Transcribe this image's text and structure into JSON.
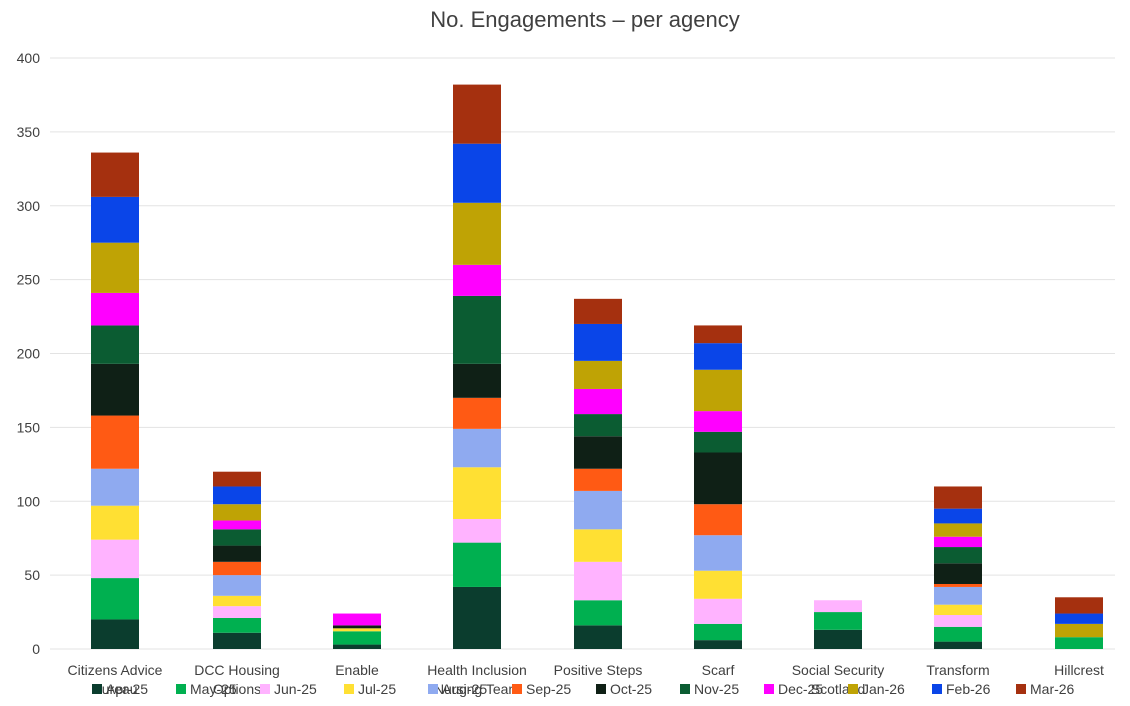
{
  "chart_data": {
    "type": "bar",
    "stacked": true,
    "title": "No. Engagements – per agency",
    "xlabel": "",
    "ylabel": "",
    "ylim": [
      0,
      400
    ],
    "yticks": [
      0,
      50,
      100,
      150,
      200,
      250,
      300,
      350,
      400
    ],
    "grid": true,
    "legend_position": "bottom",
    "categories": [
      [
        "Citizens Advice",
        "Bureau"
      ],
      [
        "DCC Housing",
        "Options"
      ],
      [
        "Enable"
      ],
      [
        "Health Inclusion",
        "Nursing Team"
      ],
      [
        "Positive Steps"
      ],
      [
        "Scarf"
      ],
      [
        "Social Security",
        "Scotland"
      ],
      [
        "Transform"
      ],
      [
        "Hillcrest"
      ]
    ],
    "series": [
      {
        "name": "Apr-25",
        "color": "#0b3d2e",
        "values": [
          20,
          11,
          3,
          42,
          16,
          6,
          13,
          5,
          0
        ]
      },
      {
        "name": "May-25",
        "color": "#00b050",
        "values": [
          28,
          10,
          9,
          30,
          17,
          11,
          12,
          10,
          8
        ]
      },
      {
        "name": "Jun-25",
        "color": "#ffb3ff",
        "values": [
          26,
          8,
          0,
          16,
          26,
          17,
          8,
          8,
          0
        ]
      },
      {
        "name": "Jul-25",
        "color": "#ffe033",
        "values": [
          23,
          7,
          2,
          35,
          22,
          19,
          0,
          7,
          0
        ]
      },
      {
        "name": "Aug-25",
        "color": "#8faaf0",
        "values": [
          25,
          14,
          0,
          26,
          26,
          24,
          0,
          12,
          0
        ]
      },
      {
        "name": "Sep-25",
        "color": "#ff5a14",
        "values": [
          36,
          9,
          0,
          21,
          15,
          21,
          0,
          2,
          0
        ]
      },
      {
        "name": "Oct-25",
        "color": "#0f2016",
        "values": [
          35,
          11,
          2,
          23,
          22,
          35,
          0,
          14,
          0
        ]
      },
      {
        "name": "Nov-25",
        "color": "#0b5c32",
        "values": [
          26,
          11,
          0,
          46,
          15,
          14,
          0,
          11,
          0
        ]
      },
      {
        "name": "Dec-25",
        "color": "#ff00ff",
        "values": [
          22,
          6,
          8,
          21,
          17,
          14,
          0,
          7,
          0
        ]
      },
      {
        "name": "Jan-26",
        "color": "#bfa305",
        "values": [
          34,
          11,
          0,
          42,
          19,
          28,
          0,
          9,
          9
        ]
      },
      {
        "name": "Feb-26",
        "color": "#0a45e8",
        "values": [
          31,
          12,
          0,
          40,
          25,
          18,
          0,
          10,
          7
        ]
      },
      {
        "name": "Mar-26",
        "color": "#a5300f",
        "values": [
          30,
          10,
          0,
          40,
          17,
          12,
          0,
          15,
          11
        ]
      }
    ]
  }
}
